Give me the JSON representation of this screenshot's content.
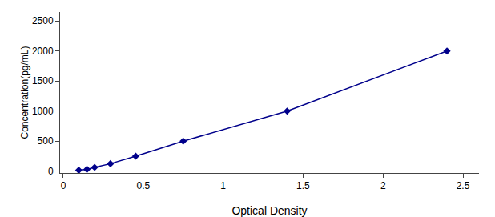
{
  "chart_data": {
    "type": "line",
    "x": [
      0.097,
      0.148,
      0.196,
      0.295,
      0.453,
      0.75,
      1.4,
      2.4
    ],
    "values": [
      15.6,
      31.25,
      62.5,
      125,
      250,
      500,
      1000,
      2000
    ],
    "color": "#00008B",
    "marker": "diamond",
    "line_style": "solid",
    "xlabel": "Optical Density",
    "ylabel": "Concentration(pg/mL)",
    "xlim": [
      -0.02,
      2.6
    ],
    "ylim": [
      -30,
      2650
    ],
    "xticks": [
      0,
      0.5,
      1,
      1.5,
      2,
      2.5
    ],
    "yticks": [
      0,
      500,
      1000,
      1500,
      2000,
      2500
    ],
    "grid": false
  }
}
